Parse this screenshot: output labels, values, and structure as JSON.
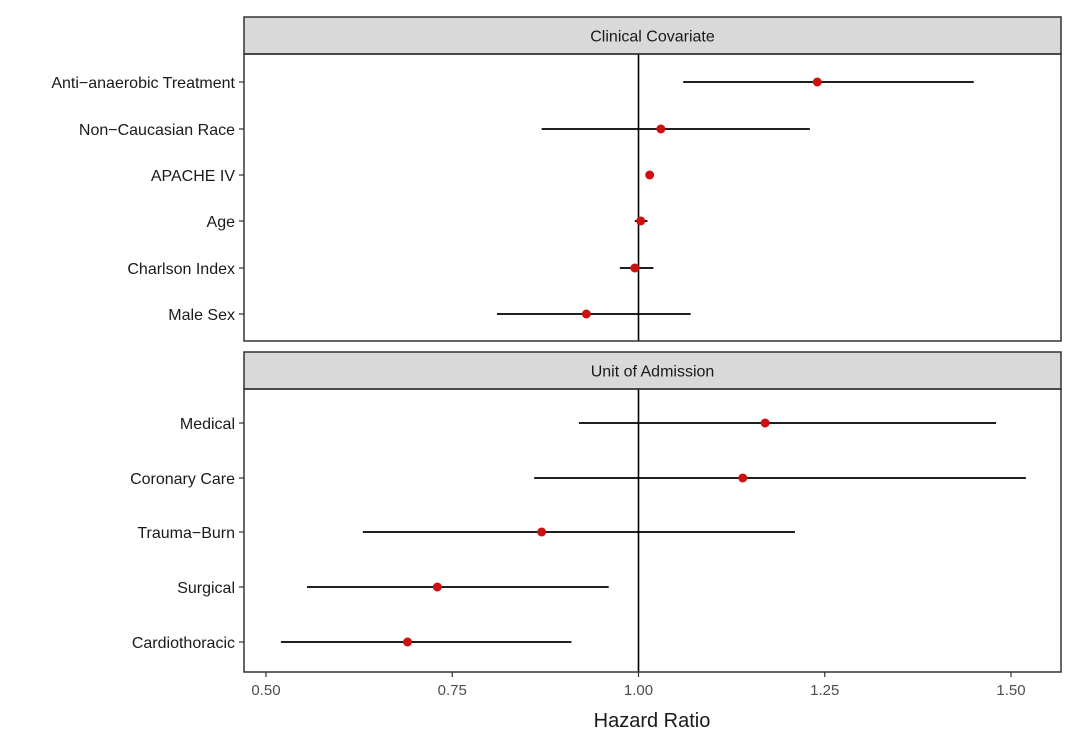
{
  "chart_data": {
    "type": "forest",
    "xlabel": "Hazard Ratio",
    "xlim": [
      0.48,
      1.57
    ],
    "x_ticks": [
      {
        "value": 0.5,
        "label": "0.50"
      },
      {
        "value": 0.75,
        "label": "0.75"
      },
      {
        "value": 1.0,
        "label": "1.00"
      },
      {
        "value": 1.25,
        "label": "1.25"
      },
      {
        "value": 1.5,
        "label": "1.50"
      }
    ],
    "reference_line": 1.0,
    "point_color": "#cc1111",
    "panels": [
      {
        "strip": "Clinical Covariate",
        "rows": [
          {
            "label": "Anti−anaerobic Treatment",
            "estimate": 1.24,
            "lower": 1.06,
            "upper": 1.45
          },
          {
            "label": "Non−Caucasian Race",
            "estimate": 1.03,
            "lower": 0.87,
            "upper": 1.23
          },
          {
            "label": "APACHE IV",
            "estimate": 1.015,
            "lower": 1.01,
            "upper": 1.02
          },
          {
            "label": "Age",
            "estimate": 1.003,
            "lower": 0.995,
            "upper": 1.012
          },
          {
            "label": "Charlson Index",
            "estimate": 0.995,
            "lower": 0.975,
            "upper": 1.02
          },
          {
            "label": "Male Sex",
            "estimate": 0.93,
            "lower": 0.81,
            "upper": 1.07
          }
        ]
      },
      {
        "strip": "Unit of Admission",
        "rows": [
          {
            "label": "Medical",
            "estimate": 1.17,
            "lower": 0.92,
            "upper": 1.48
          },
          {
            "label": "Coronary Care",
            "estimate": 1.14,
            "lower": 0.86,
            "upper": 1.52
          },
          {
            "label": "Trauma−Burn",
            "estimate": 0.87,
            "lower": 0.63,
            "upper": 1.21
          },
          {
            "label": "Surgical",
            "estimate": 0.73,
            "lower": 0.555,
            "upper": 0.96
          },
          {
            "label": "Cardiothoracic",
            "estimate": 0.69,
            "lower": 0.52,
            "upper": 0.91
          }
        ]
      }
    ]
  }
}
